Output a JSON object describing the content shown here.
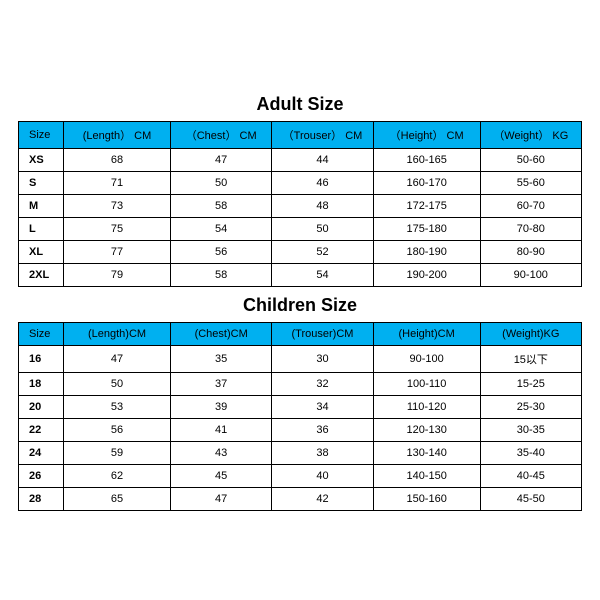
{
  "adult": {
    "title": "Adult Size",
    "title_fontsize": 18,
    "header_bg": "#00b0f0",
    "header_fontsize": 11,
    "cell_fontsize": 11,
    "headers": [
      "Size",
      "(Length） CM",
      "（Chest） CM",
      "（Trouser） CM",
      "（Height） CM",
      "（Weight） KG"
    ],
    "col_widths": [
      "8%",
      "19%",
      "18%",
      "18%",
      "19%",
      "18%"
    ],
    "rows": [
      [
        "XS",
        "68",
        "47",
        "44",
        "160-165",
        "50-60"
      ],
      [
        "S",
        "71",
        "50",
        "46",
        "160-170",
        "55-60"
      ],
      [
        "M",
        "73",
        "58",
        "48",
        "172-175",
        "60-70"
      ],
      [
        "L",
        "75",
        "54",
        "50",
        "175-180",
        "70-80"
      ],
      [
        "XL",
        "77",
        "56",
        "52",
        "180-190",
        "80-90"
      ],
      [
        "2XL",
        "79",
        "58",
        "54",
        "190-200",
        "90-100"
      ]
    ]
  },
  "children": {
    "title": "Children Size",
    "title_fontsize": 18,
    "header_bg": "#00b0f0",
    "header_fontsize": 11,
    "cell_fontsize": 11,
    "headers": [
      "Size",
      "(Length)CM",
      "(Chest)CM",
      "(Trouser)CM",
      "(Height)CM",
      "(Weight)KG"
    ],
    "col_widths": [
      "8%",
      "19%",
      "18%",
      "18%",
      "19%",
      "18%"
    ],
    "rows": [
      [
        "16",
        "47",
        "35",
        "30",
        "90-100",
        "15以下"
      ],
      [
        "18",
        "50",
        "37",
        "32",
        "100-110",
        "15-25"
      ],
      [
        "20",
        "53",
        "39",
        "34",
        "110-120",
        "25-30"
      ],
      [
        "22",
        "56",
        "41",
        "36",
        "120-130",
        "30-35"
      ],
      [
        "24",
        "59",
        "43",
        "38",
        "130-140",
        "35-40"
      ],
      [
        "26",
        "62",
        "45",
        "40",
        "140-150",
        "40-45"
      ],
      [
        "28",
        "65",
        "47",
        "42",
        "150-160",
        "45-50"
      ]
    ]
  }
}
